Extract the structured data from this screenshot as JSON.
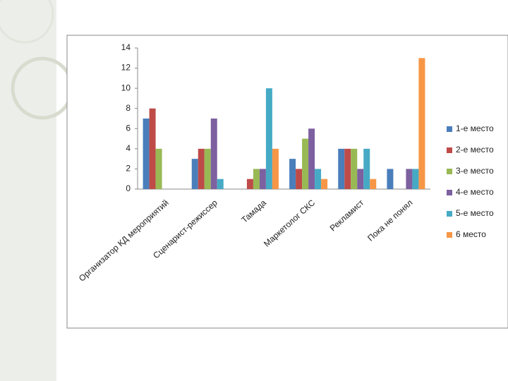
{
  "chart_data": {
    "type": "bar",
    "categories": [
      "Организатор КД мероприятий",
      "Сценарист-режиссер",
      "Тамада",
      "Маркетолог СКС",
      "Рекламист",
      "Пока не понял"
    ],
    "series": [
      {
        "name": "1-е место",
        "color": "#4a7ebb",
        "values": [
          7,
          3,
          0,
          3,
          4,
          2
        ]
      },
      {
        "name": "2-е место",
        "color": "#be4b48",
        "values": [
          8,
          4,
          1,
          2,
          4,
          0
        ]
      },
      {
        "name": "3-е место",
        "color": "#98b954",
        "values": [
          4,
          4,
          2,
          5,
          4,
          0
        ]
      },
      {
        "name": "4-е место",
        "color": "#7d60a0",
        "values": [
          0,
          7,
          2,
          6,
          2,
          2
        ]
      },
      {
        "name": "5-е место",
        "color": "#46aac5",
        "values": [
          0,
          1,
          10,
          2,
          4,
          2
        ]
      },
      {
        "name": "6 место",
        "color": "#f79646",
        "values": [
          0,
          0,
          4,
          1,
          1,
          13
        ]
      }
    ],
    "ylim": [
      0,
      14
    ],
    "yticks": [
      0,
      2,
      4,
      6,
      8,
      10,
      12,
      14
    ],
    "grid": false,
    "legend": "right"
  }
}
